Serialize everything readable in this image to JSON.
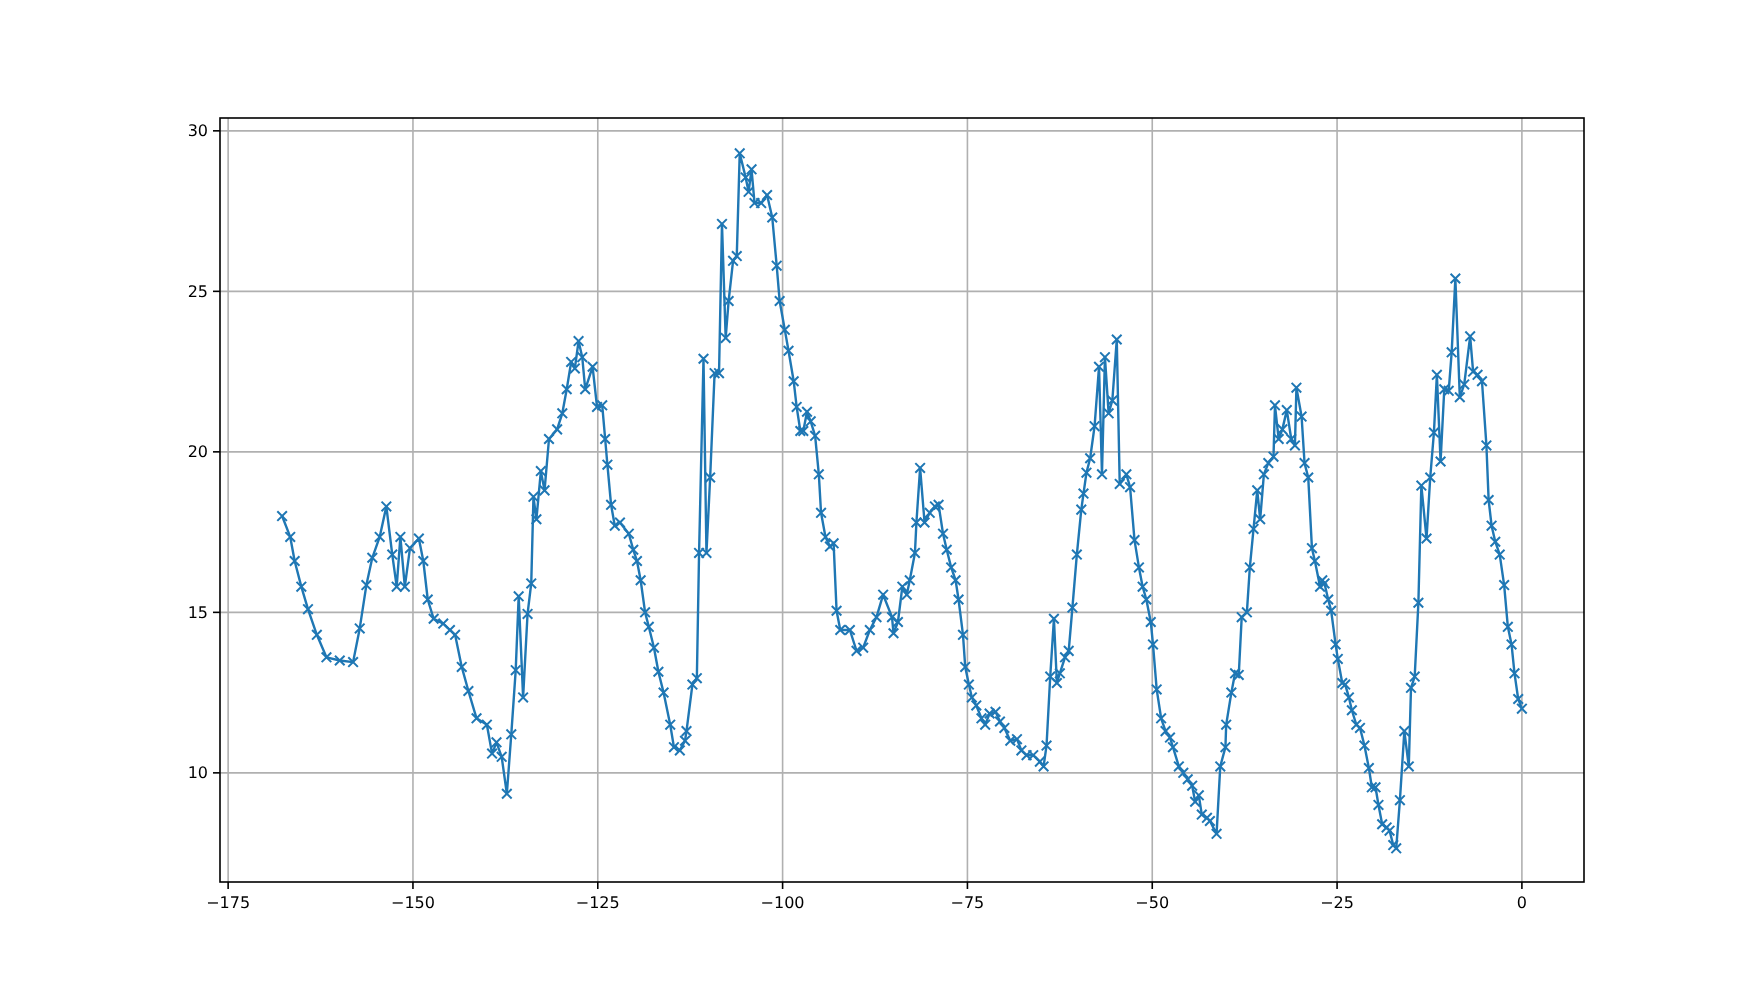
{
  "chart_data": {
    "type": "line",
    "marker": "cross",
    "line_style": "solid",
    "grid": true,
    "xlim": [
      -176.1,
      8.4
    ],
    "ylim": [
      6.6,
      30.4
    ],
    "xticks": [
      {
        "value": -175,
        "label": "−175"
      },
      {
        "value": -150,
        "label": "−150"
      },
      {
        "value": -125,
        "label": "−125"
      },
      {
        "value": -100,
        "label": "−100"
      },
      {
        "value": -75,
        "label": "−75"
      },
      {
        "value": -50,
        "label": "−50"
      },
      {
        "value": -25,
        "label": "−25"
      },
      0
    ],
    "yticks": [
      10,
      15,
      20,
      25,
      30
    ],
    "series": [
      {
        "color": "#1f77b4",
        "x": [
          -167.7,
          -166.6,
          -166.0,
          -165.1,
          -164.2,
          -163.0,
          -161.7,
          -159.9,
          -158.1,
          -157.2,
          -156.3,
          -155.5,
          -154.5,
          -153.6,
          -152.8,
          -152.2,
          -151.7,
          -151.1,
          -150.4,
          -149.2,
          -148.6,
          -148.0,
          -147.2,
          -145.9,
          -145.0,
          -144.3,
          -143.4,
          -142.5,
          -141.4,
          -140.0,
          -139.3,
          -138.7,
          -138.0,
          -137.3,
          -136.7,
          -136.1,
          -135.7,
          -135.1,
          -134.5,
          -134.0,
          -133.7,
          -133.3,
          -132.7,
          -132.2,
          -131.6,
          -130.5,
          -129.8,
          -129.2,
          -128.6,
          -128.1,
          -127.6,
          -127.1,
          -126.7,
          -125.7,
          -125.1,
          -124.4,
          -124.0,
          -123.7,
          -123.2,
          -122.7,
          -122.0,
          -120.8,
          -120.2,
          -119.7,
          -119.2,
          -118.6,
          -118.1,
          -117.4,
          -116.8,
          -116.1,
          -115.2,
          -114.7,
          -113.9,
          -113.2,
          -113.0,
          -112.2,
          -111.6,
          -111.3,
          -110.7,
          -110.3,
          -109.8,
          -109.2,
          -108.6,
          -108.2,
          -107.7,
          -107.3,
          -106.7,
          -106.2,
          -105.8,
          -105.0,
          -104.6,
          -104.2,
          -103.8,
          -102.9,
          -102.1,
          -101.4,
          -100.8,
          -100.4,
          -99.7,
          -99.2,
          -98.5,
          -98.1,
          -97.6,
          -97.2,
          -96.7,
          -96.2,
          -95.6,
          -95.1,
          -94.8,
          -94.2,
          -93.6,
          -93.1,
          -92.7,
          -92.2,
          -90.9,
          -90.0,
          -89.1,
          -88.2,
          -87.3,
          -86.4,
          -85.2,
          -85.0,
          -84.4,
          -83.8,
          -83.2,
          -82.8,
          -82.1,
          -81.9,
          -81.4,
          -80.8,
          -80.1,
          -79.4,
          -78.9,
          -78.3,
          -77.8,
          -77.2,
          -76.6,
          -76.2,
          -75.6,
          -75.3,
          -74.8,
          -74.4,
          -73.8,
          -73.1,
          -72.6,
          -72.0,
          -71.2,
          -70.6,
          -70.0,
          -69.2,
          -68.3,
          -67.7,
          -67.0,
          -66.1,
          -65.2,
          -64.7,
          -64.3,
          -63.8,
          -63.3,
          -62.9,
          -62.5,
          -61.8,
          -61.3,
          -60.8,
          -60.2,
          -59.6,
          -59.3,
          -58.9,
          -58.4,
          -57.8,
          -57.2,
          -56.8,
          -56.4,
          -55.9,
          -55.4,
          -54.8,
          -54.4,
          -53.5,
          -53.0,
          -52.4,
          -51.8,
          -51.3,
          -50.8,
          -50.2,
          -49.9,
          -49.4,
          -48.8,
          -48.2,
          -47.6,
          -47.2,
          -46.4,
          -45.8,
          -45.2,
          -44.6,
          -44.2,
          -43.7,
          -43.3,
          -42.6,
          -42.2,
          -41.3,
          -40.8,
          -40.1,
          -40.0,
          -39.3,
          -38.8,
          -38.3,
          -37.9,
          -37.2,
          -36.8,
          -36.3,
          -35.8,
          -35.4,
          -34.9,
          -34.3,
          -33.6,
          -33.4,
          -32.9,
          -32.4,
          -31.8,
          -31.2,
          -30.7,
          -30.5,
          -29.8,
          -29.4,
          -28.9,
          -28.4,
          -28.0,
          -27.3,
          -27.0,
          -26.7,
          -26.2,
          -25.8,
          -25.2,
          -24.9,
          -24.3,
          -23.9,
          -23.4,
          -23.0,
          -22.4,
          -21.9,
          -21.3,
          -20.7,
          -20.3,
          -19.8,
          -19.4,
          -18.9,
          -18.3,
          -17.9,
          -17.4,
          -17.0,
          -16.5,
          -15.9,
          -15.3,
          -15.0,
          -14.5,
          -14.0,
          -13.6,
          -12.9,
          -12.4,
          -11.9,
          -11.5,
          -11.0,
          -10.5,
          -9.9,
          -9.5,
          -9.0,
          -8.4,
          -7.8,
          -7.0,
          -6.6,
          -6.0,
          -5.4,
          -4.8,
          -4.5,
          -4.1,
          -3.6,
          -3.0,
          -2.4,
          -1.9,
          -1.4,
          -1.0,
          -0.5,
          0.0
        ],
        "values": [
          18.0,
          17.35,
          16.6,
          15.8,
          15.1,
          14.3,
          13.6,
          13.5,
          13.45,
          14.5,
          15.85,
          16.7,
          17.35,
          18.3,
          16.8,
          15.8,
          17.35,
          15.8,
          17.0,
          17.3,
          16.6,
          15.4,
          14.8,
          14.65,
          14.45,
          14.3,
          13.3,
          12.55,
          11.7,
          11.5,
          10.6,
          10.95,
          10.5,
          9.35,
          11.2,
          13.2,
          15.5,
          12.35,
          14.95,
          15.9,
          18.6,
          17.9,
          19.4,
          18.8,
          20.4,
          20.7,
          21.2,
          21.95,
          22.8,
          22.6,
          23.45,
          22.95,
          21.95,
          22.65,
          21.4,
          21.45,
          20.4,
          19.6,
          18.35,
          17.7,
          17.8,
          17.45,
          16.95,
          16.6,
          16.0,
          15.0,
          14.55,
          13.9,
          13.15,
          12.5,
          11.5,
          10.8,
          10.7,
          11.0,
          11.3,
          12.75,
          12.95,
          16.85,
          22.9,
          16.85,
          19.2,
          22.45,
          22.45,
          27.1,
          23.55,
          24.7,
          25.95,
          26.1,
          29.3,
          28.55,
          28.1,
          28.8,
          27.75,
          27.75,
          28.0,
          27.3,
          25.8,
          24.7,
          23.8,
          23.15,
          22.2,
          21.4,
          20.65,
          20.65,
          21.25,
          20.95,
          20.5,
          19.3,
          18.1,
          17.35,
          17.05,
          17.15,
          15.05,
          14.45,
          14.45,
          13.8,
          13.9,
          14.45,
          14.85,
          15.55,
          14.85,
          14.35,
          14.7,
          15.8,
          15.55,
          16.0,
          16.85,
          17.8,
          19.5,
          17.8,
          18.1,
          18.3,
          18.35,
          17.45,
          16.95,
          16.4,
          16.0,
          15.4,
          14.3,
          13.3,
          12.75,
          12.35,
          12.1,
          11.7,
          11.5,
          11.85,
          11.9,
          11.6,
          11.4,
          11.0,
          11.05,
          10.7,
          10.55,
          10.55,
          10.35,
          10.2,
          10.85,
          13.0,
          14.8,
          12.8,
          13.1,
          13.6,
          13.8,
          15.15,
          16.8,
          18.2,
          18.7,
          19.35,
          19.8,
          20.8,
          22.65,
          19.3,
          22.95,
          21.2,
          21.6,
          23.5,
          19.0,
          19.3,
          18.9,
          17.25,
          16.4,
          15.8,
          15.4,
          14.7,
          14.0,
          12.6,
          11.7,
          11.3,
          11.1,
          10.8,
          10.2,
          10.0,
          9.8,
          9.6,
          9.1,
          9.3,
          8.7,
          8.6,
          8.5,
          8.1,
          10.2,
          10.8,
          11.5,
          12.5,
          13.1,
          13.05,
          14.85,
          15.0,
          16.4,
          17.6,
          18.8,
          17.9,
          19.3,
          19.65,
          19.85,
          21.45,
          20.4,
          20.7,
          21.3,
          20.4,
          20.2,
          22.0,
          21.1,
          19.65,
          19.2,
          17.0,
          16.6,
          15.8,
          16.0,
          15.9,
          15.4,
          15.05,
          14.0,
          13.55,
          12.8,
          12.75,
          12.35,
          11.95,
          11.5,
          11.4,
          10.85,
          10.15,
          9.55,
          9.55,
          9.0,
          8.4,
          8.3,
          8.2,
          7.75,
          7.65,
          9.15,
          11.3,
          10.2,
          12.65,
          13.0,
          15.3,
          18.95,
          17.3,
          19.2,
          20.6,
          22.4,
          19.7,
          21.95,
          21.9,
          23.1,
          25.4,
          21.7,
          22.1,
          23.6,
          22.5,
          22.4,
          22.2,
          20.2,
          18.5,
          17.7,
          17.2,
          16.8,
          15.85,
          14.55,
          14.0,
          13.1,
          12.3,
          12.0
        ]
      }
    ]
  }
}
